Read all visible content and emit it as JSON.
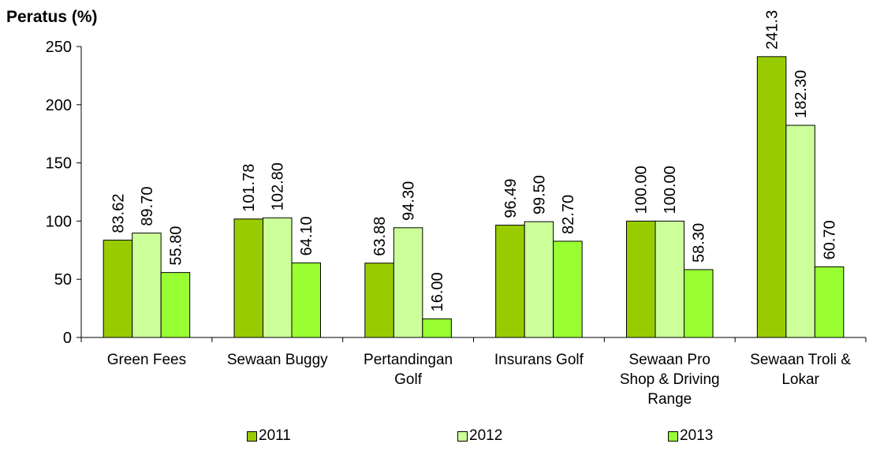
{
  "chart_data": {
    "type": "bar",
    "ylabel": "Peratus (%)",
    "ylim": [
      0,
      250
    ],
    "yticks": [
      0,
      50,
      100,
      150,
      200,
      250
    ],
    "categories": [
      [
        "Green Fees"
      ],
      [
        "Sewaan Buggy"
      ],
      [
        "Pertandingan",
        "Golf"
      ],
      [
        "Insurans Golf"
      ],
      [
        "Sewaan Pro",
        "Shop & Driving",
        "Range"
      ],
      [
        "Sewaan Troli &",
        "Lokar"
      ]
    ],
    "series": [
      {
        "name": "2011",
        "color": "#99cc00",
        "values": [
          83.62,
          101.78,
          63.88,
          96.49,
          100.0,
          241.3
        ],
        "labels": [
          "83.62",
          "101.78",
          "63.88",
          "96.49",
          "100.00",
          "241.3"
        ]
      },
      {
        "name": "2012",
        "color": "#ccff99",
        "values": [
          89.7,
          102.8,
          94.3,
          99.5,
          100.0,
          182.3
        ],
        "labels": [
          "89.70",
          "102.80",
          "94.30",
          "99.50",
          "100.00",
          "182.30"
        ]
      },
      {
        "name": "2013",
        "color": "#99ff33",
        "values": [
          55.8,
          64.1,
          16.0,
          82.7,
          58.3,
          60.7
        ],
        "labels": [
          "55.80",
          "64.10",
          "16.00",
          "82.70",
          "58.30",
          "60.70"
        ]
      }
    ],
    "grid": false,
    "legend_position": "bottom"
  }
}
